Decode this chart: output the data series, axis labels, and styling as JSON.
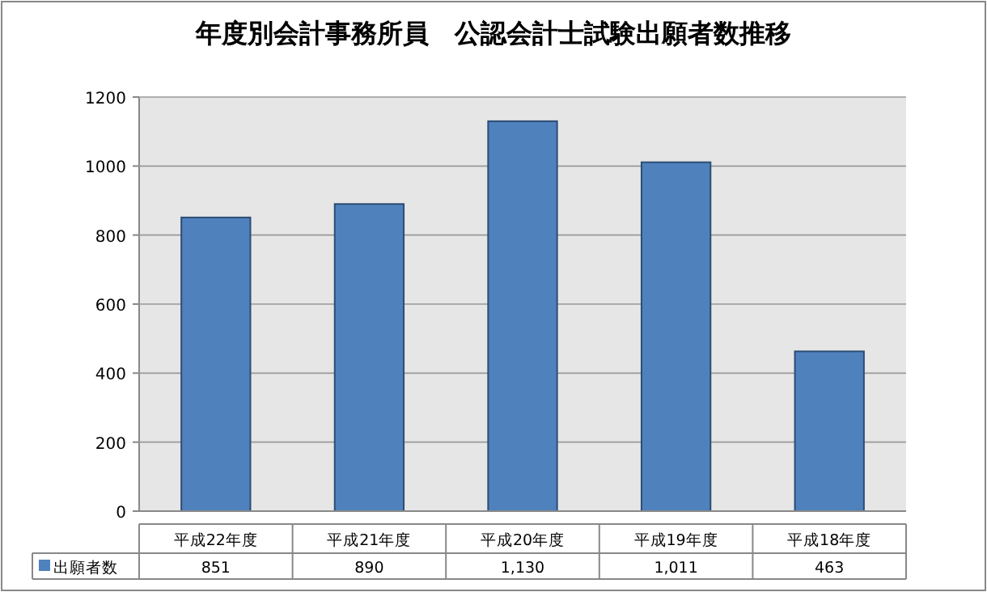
{
  "chart_data": {
    "type": "bar",
    "title": "年度別会計事務所員　公認会計士試験出願者数推移",
    "categories": [
      "平成22年度",
      "平成21年度",
      "平成20年度",
      "平成19年度",
      "平成18年度"
    ],
    "series": [
      {
        "name": "出願者数",
        "color": "#4f81bd",
        "values": [
          851,
          890,
          1130,
          1011,
          463
        ]
      }
    ],
    "value_labels": [
      "851",
      "890",
      "1,130",
      "1,011",
      "463"
    ],
    "ylim": [
      0,
      1200
    ],
    "yticks": [
      0,
      200,
      400,
      600,
      800,
      1000,
      1200
    ],
    "grid": "y",
    "legend": "bottom left"
  }
}
